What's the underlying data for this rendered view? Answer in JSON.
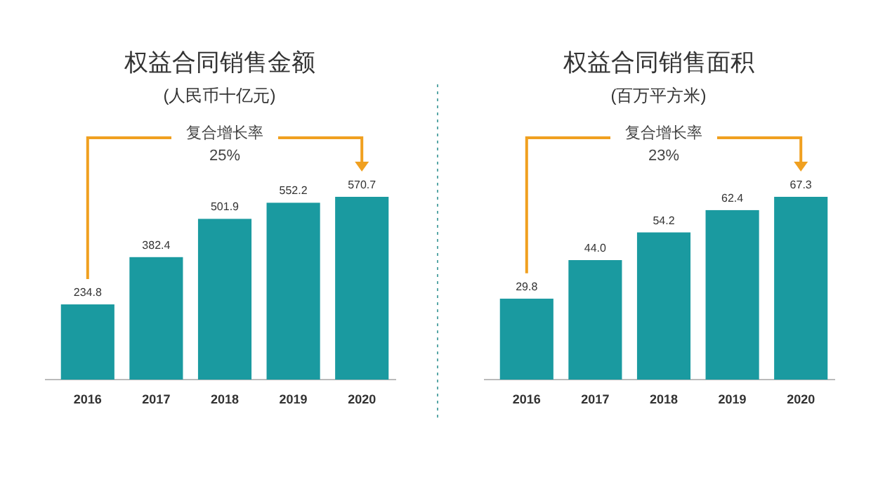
{
  "chart_data": [
    {
      "type": "bar",
      "title": "权益合同销售金额",
      "subtitle": "(人民币十亿元)",
      "categories": [
        "2016",
        "2017",
        "2018",
        "2019",
        "2020"
      ],
      "values": [
        234.8,
        382.4,
        501.9,
        552.2,
        570.7
      ],
      "color": "#1a9aa0",
      "data_labels": true,
      "annotations": [
        "复合增长率",
        "25%"
      ]
    },
    {
      "type": "bar",
      "title": "权益合同销售面积",
      "subtitle": "(百万平方米)",
      "categories": [
        "2016",
        "2017",
        "2018",
        "2019",
        "2020"
      ],
      "values": [
        29.8,
        44.0,
        54.2,
        62.4,
        67.3
      ],
      "color": "#1a9aa0",
      "value_labels": [
        "29.8",
        "44.0",
        "54.2",
        "62.4",
        "67.3"
      ],
      "annotations": [
        "复合增长率",
        "23%"
      ]
    }
  ]
}
